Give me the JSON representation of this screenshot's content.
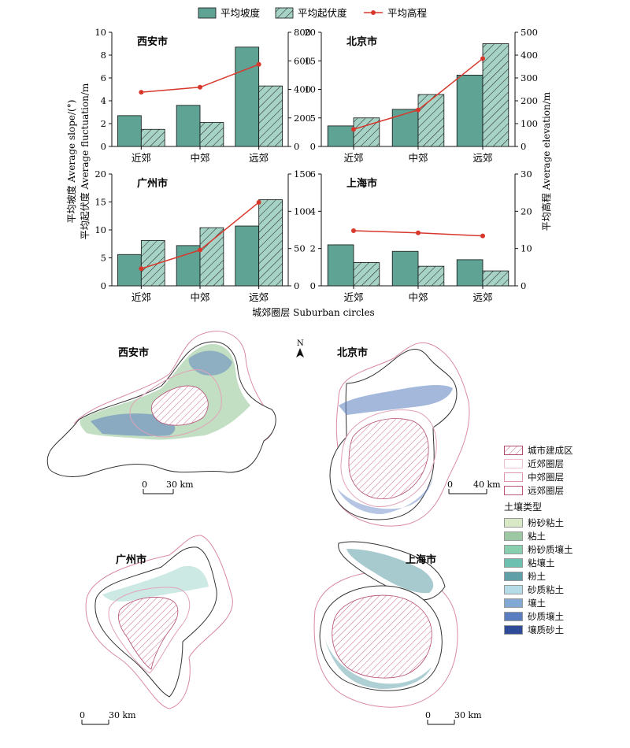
{
  "legend": {
    "slope": "平均坡度",
    "fluct": "平均起伏度",
    "elev": "平均高程"
  },
  "colors": {
    "slope": "#5fa394",
    "fluct": "#a7d3c6",
    "line": "#d8382c"
  },
  "axis_labels": {
    "left_line1": "平均坡度 Average slope/(°)",
    "left_line2": "平均起伏度 Average fluctuation/m",
    "right": "平均高程 Average elevation/m",
    "bottom": "城郊圈层 Suburban circles"
  },
  "chart_data": [
    {
      "type": "bar",
      "title": "西安市",
      "categories": [
        "近郊",
        "中郊",
        "远郊"
      ],
      "series": [
        {
          "name": "平均坡度",
          "values": [
            2.7,
            3.6,
            8.7
          ],
          "axis": "left"
        },
        {
          "name": "平均起伏度",
          "values": [
            1.5,
            2.1,
            5.3
          ],
          "axis": "left"
        },
        {
          "name": "平均高程",
          "values": [
            380,
            415,
            575
          ],
          "axis": "right",
          "type": "line"
        }
      ],
      "ylim_left": [
        0,
        10
      ],
      "yticks_left": [
        0,
        2,
        4,
        6,
        8,
        10
      ],
      "ylim_right": [
        0,
        800
      ],
      "yticks_right": [
        0,
        200,
        400,
        600,
        800
      ]
    },
    {
      "type": "bar",
      "title": "北京市",
      "categories": [
        "近郊",
        "中郊",
        "远郊"
      ],
      "series": [
        {
          "name": "平均坡度",
          "values": [
            3.6,
            6.5,
            12.5
          ],
          "axis": "left"
        },
        {
          "name": "平均起伏度",
          "values": [
            5.0,
            9.1,
            18.0
          ],
          "axis": "left"
        },
        {
          "name": "平均高程",
          "values": [
            75,
            160,
            385
          ],
          "axis": "right",
          "type": "line"
        }
      ],
      "ylim_left": [
        0,
        20
      ],
      "yticks_left": [
        0,
        5,
        10,
        15,
        20
      ],
      "ylim_right": [
        0,
        500
      ],
      "yticks_right": [
        0,
        100,
        200,
        300,
        400,
        500
      ]
    },
    {
      "type": "bar",
      "title": "广州市",
      "categories": [
        "近郊",
        "中郊",
        "远郊"
      ],
      "series": [
        {
          "name": "平均坡度",
          "values": [
            5.6,
            7.2,
            10.7
          ],
          "axis": "left"
        },
        {
          "name": "平均起伏度",
          "values": [
            8.1,
            10.4,
            15.4
          ],
          "axis": "left"
        },
        {
          "name": "平均高程",
          "values": [
            23,
            48,
            112
          ],
          "axis": "right",
          "type": "line"
        }
      ],
      "ylim_left": [
        0,
        20
      ],
      "yticks_left": [
        0,
        5,
        10,
        15,
        20
      ],
      "ylim_right": [
        0,
        150
      ],
      "yticks_right": [
        0,
        50,
        100,
        150
      ]
    },
    {
      "type": "bar",
      "title": "上海市",
      "categories": [
        "近郊",
        "中郊",
        "远郊"
      ],
      "series": [
        {
          "name": "平均坡度",
          "values": [
            2.2,
            1.85,
            1.4
          ],
          "axis": "left"
        },
        {
          "name": "平均起伏度",
          "values": [
            1.25,
            1.05,
            0.8
          ],
          "axis": "left"
        },
        {
          "name": "平均高程",
          "values": [
            14.8,
            14.2,
            13.4
          ],
          "axis": "right",
          "type": "line"
        }
      ],
      "ylim_left": [
        0,
        6
      ],
      "yticks_left": [
        0,
        2,
        4,
        6
      ],
      "ylim_right": [
        0,
        30
      ],
      "yticks_right": [
        0,
        10,
        20,
        30
      ]
    }
  ],
  "maps": {
    "north_label": "N",
    "cities": [
      {
        "name": "西安市",
        "scale_label": "0",
        "scale_value": "30 km"
      },
      {
        "name": "北京市",
        "scale_label": "0",
        "scale_value": "40 km"
      },
      {
        "name": "广州市",
        "scale_label": "0",
        "scale_value": "30 km"
      },
      {
        "name": "上海市",
        "scale_label": "0",
        "scale_value": "30 km"
      }
    ]
  },
  "map_legend": {
    "zones": [
      {
        "label": "城市建成区",
        "style": "hatch"
      },
      {
        "label": "近郊圈层",
        "style": "outline-light"
      },
      {
        "label": "中郊圈层",
        "style": "outline-mid"
      },
      {
        "label": "远郊圈层",
        "style": "outline-dark"
      }
    ],
    "soil_title": "土壤类型",
    "soils": [
      {
        "label": "粉砂粘土",
        "color": "#d9e8c5"
      },
      {
        "label": "粘土",
        "color": "#9cc8a4"
      },
      {
        "label": "粉砂质壤土",
        "color": "#88cfb0"
      },
      {
        "label": "粘壤土",
        "color": "#6cc0b0"
      },
      {
        "label": "粉土",
        "color": "#5e9fa8"
      },
      {
        "label": "砂质粘土",
        "color": "#b6dce8"
      },
      {
        "label": "壤土",
        "color": "#82a9d3"
      },
      {
        "label": "砂质壤土",
        "color": "#5a7ec0"
      },
      {
        "label": "壤质砂土",
        "color": "#2f4c98"
      }
    ]
  }
}
